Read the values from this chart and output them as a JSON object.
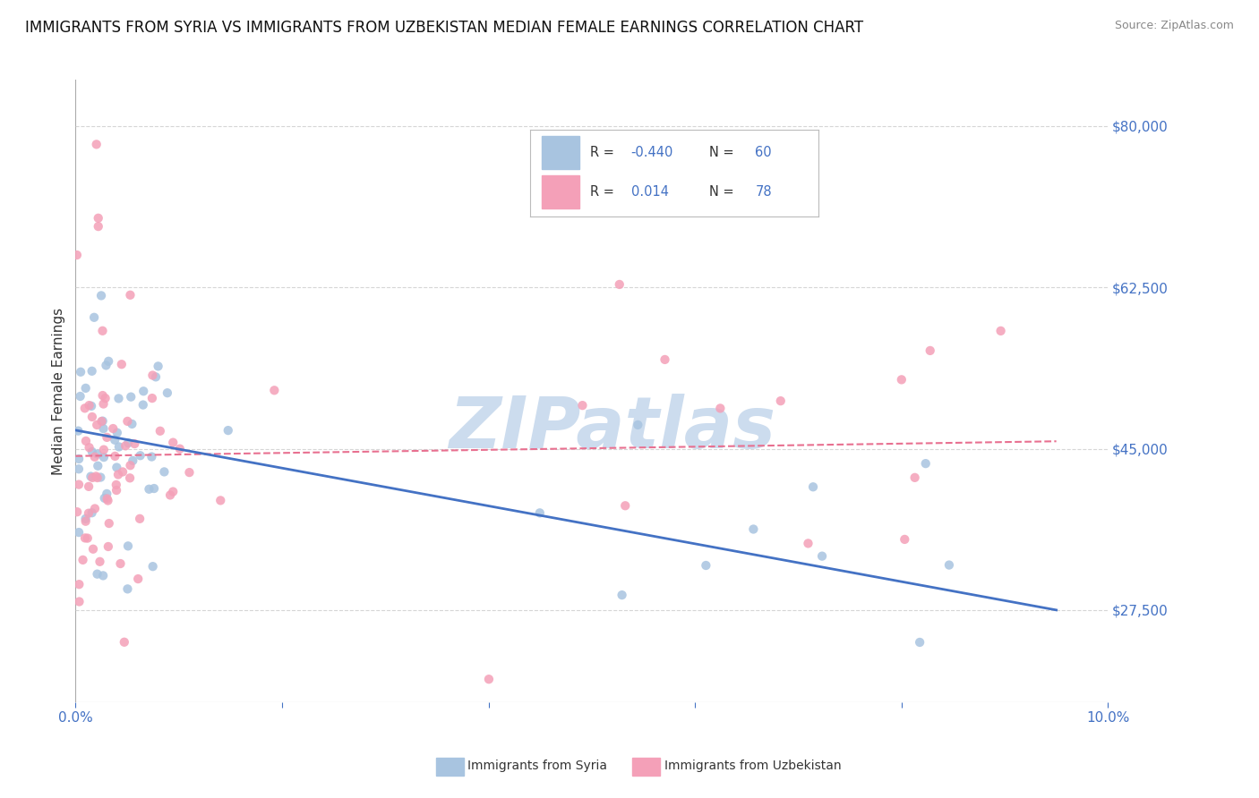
{
  "title": "IMMIGRANTS FROM SYRIA VS IMMIGRANTS FROM UZBEKISTAN MEDIAN FEMALE EARNINGS CORRELATION CHART",
  "source": "Source: ZipAtlas.com",
  "ylabel": "Median Female Earnings",
  "xlim": [
    0.0,
    0.1
  ],
  "ylim": [
    17500,
    85000
  ],
  "yticks": [
    27500,
    45000,
    62500,
    80000
  ],
  "ytick_labels": [
    "$27,500",
    "$45,000",
    "$62,500",
    "$80,000"
  ],
  "xticks": [
    0.0,
    0.02,
    0.04,
    0.06,
    0.08,
    0.1
  ],
  "xtick_labels": [
    "0.0%",
    "",
    "",
    "",
    "",
    "10.0%"
  ],
  "syria_R": -0.44,
  "syria_N": 60,
  "uzbekistan_R": 0.014,
  "uzbekistan_N": 78,
  "syria_color": "#a8c4e0",
  "uzbekistan_color": "#f4a0b8",
  "syria_line_color": "#4472c4",
  "uzbekistan_line_color": "#e87090",
  "axis_color": "#4472c4",
  "grid_color": "#cccccc",
  "background_color": "#ffffff",
  "watermark": "ZIPatlas",
  "watermark_color": "#ccdcee",
  "title_fontsize": 12,
  "label_fontsize": 11,
  "tick_fontsize": 11,
  "legend_R_color": "#333333",
  "legend_N_color": "#4472c4",
  "source_color": "#888888"
}
